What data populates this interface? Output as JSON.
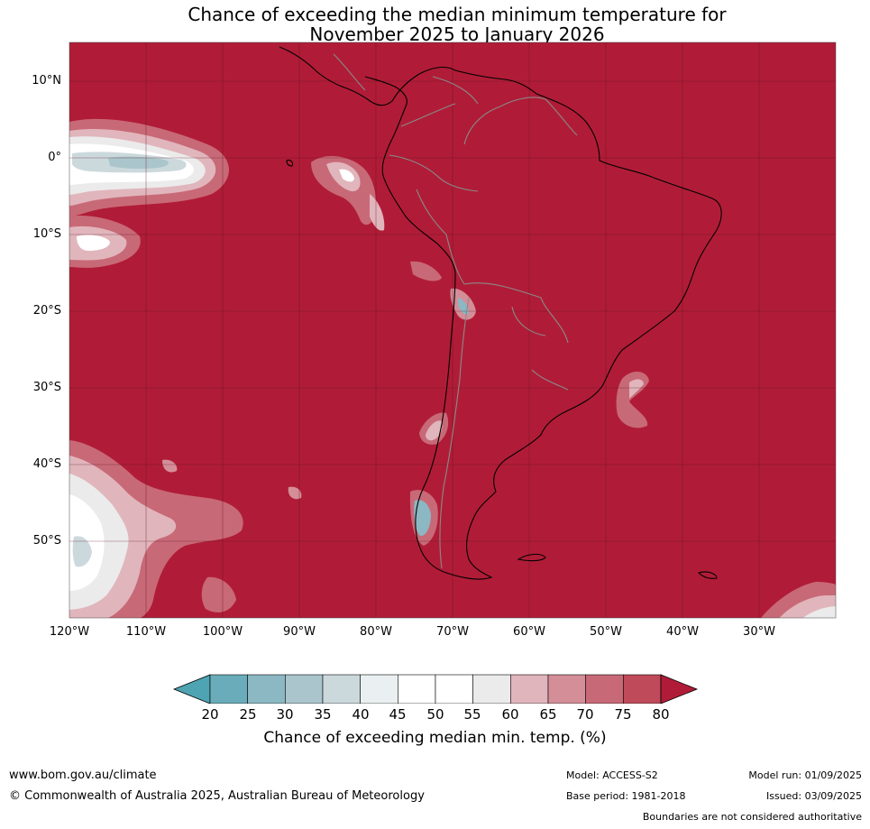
{
  "title": {
    "line1": "Chance of exceeding the median minimum temperature for",
    "line2": "November 2025 to January 2026"
  },
  "map": {
    "lat_labels": [
      "10°N",
      "0°",
      "10°S",
      "20°S",
      "30°S",
      "40°S",
      "50°S"
    ],
    "lon_labels": [
      "120°W",
      "110°W",
      "100°W",
      "90°W",
      "80°W",
      "70°W",
      "60°W",
      "50°W",
      "40°W",
      "30°W"
    ],
    "background_color": "#b01c37",
    "grid": "on"
  },
  "colorbar": {
    "ticks": [
      "20",
      "25",
      "30",
      "35",
      "40",
      "45",
      "50",
      "55",
      "60",
      "65",
      "70",
      "75",
      "80"
    ],
    "colors": [
      "#4ea4b3",
      "#6aacb9",
      "#8bb8c3",
      "#aac6cc",
      "#ccd9dc",
      "#eaf0f1",
      "#ffffff",
      "#ffffff",
      "#ebebeb",
      "#e1b5bc",
      "#d48e98",
      "#c86977",
      "#bf4a5a",
      "#b01c37"
    ],
    "label": "Chance of exceeding median min. temp. (%)"
  },
  "footer": {
    "url": "www.bom.gov.au/climate",
    "copyright": "© Commonwealth of Australia 2025, Australian Bureau of Meteorology",
    "model": "Model: ACCESS-S2",
    "base_period": "Base period: 1981-2018",
    "model_run": "Model run: 01/09/2025",
    "issued": "Issued: 03/09/2025",
    "boundaries": "Boundaries are not considered authoritative"
  }
}
